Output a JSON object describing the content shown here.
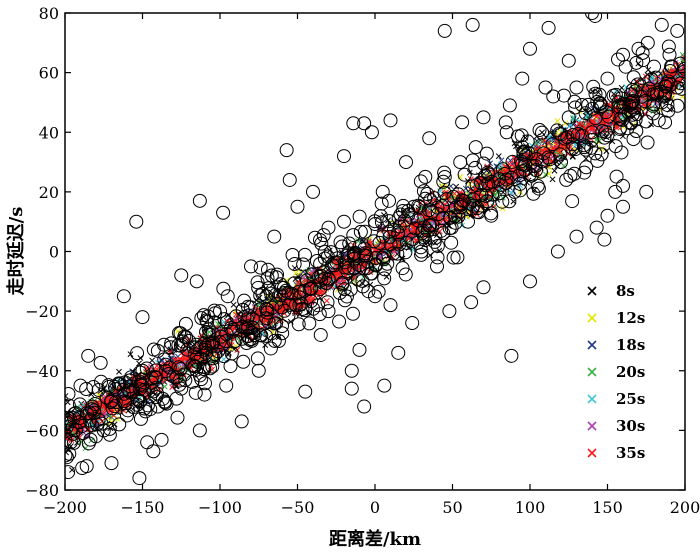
{
  "chart_data": {
    "type": "scatter",
    "xlabel": "距离差/km",
    "ylabel": "走时延迟/s",
    "xlim": [
      -200,
      200
    ],
    "ylim": [
      -80,
      80
    ],
    "xticks": [
      -200,
      -150,
      -100,
      -50,
      0,
      50,
      100,
      150,
      200
    ],
    "yticks": [
      -80,
      -60,
      -40,
      -20,
      0,
      20,
      40,
      60,
      80
    ],
    "xtick_labels": [
      "−200",
      "−150",
      "−100",
      "−50",
      "0",
      "50",
      "100",
      "150",
      "200"
    ],
    "ytick_labels": [
      "−80",
      "−60",
      "−40",
      "−20",
      "0",
      "20",
      "40",
      "60",
      "80"
    ],
    "grid": false,
    "legend_position": "lower-right",
    "colors": {
      "8s": "#000000",
      "12s": "#e6e600",
      "18s": "#1f3a8a",
      "20s": "#3cb043",
      "25s": "#3ec5d9",
      "30s": "#b03fb0",
      "35s": "#ff1a1a",
      "outlier_circles": "#000000"
    },
    "series": [
      {
        "name": "8s",
        "marker": "x",
        "trend": {
          "slope": 0.3,
          "intercept": 0.0
        }
      },
      {
        "name": "12s",
        "marker": "x",
        "trend": {
          "slope": 0.3,
          "intercept": 0.0
        }
      },
      {
        "name": "18s",
        "marker": "x",
        "trend": {
          "slope": 0.3,
          "intercept": 0.0
        }
      },
      {
        "name": "20s",
        "marker": "x",
        "trend": {
          "slope": 0.3,
          "intercept": 0.0
        }
      },
      {
        "name": "25s",
        "marker": "x",
        "trend": {
          "slope": 0.3,
          "intercept": 0.0
        }
      },
      {
        "name": "30s",
        "marker": "x",
        "trend": {
          "slope": 0.3,
          "intercept": 0.0
        }
      },
      {
        "name": "35s",
        "marker": "x",
        "trend": {
          "slope": 0.3,
          "intercept": 0.0
        }
      }
    ],
    "outliers": {
      "marker": "open-circle",
      "points": [
        [
          140,
          80
        ],
        [
          142,
          79
        ],
        [
          63,
          76
        ],
        [
          112,
          75
        ],
        [
          45,
          74
        ],
        [
          185,
          76
        ],
        [
          160,
          66
        ],
        [
          125,
          64
        ],
        [
          195,
          74
        ],
        [
          176,
          70
        ],
        [
          100,
          68
        ],
        [
          170,
          68
        ],
        [
          95,
          58
        ],
        [
          110,
          55
        ],
        [
          87,
          49
        ],
        [
          115,
          52
        ],
        [
          -7,
          43
        ],
        [
          -14,
          43
        ],
        [
          -2,
          40
        ],
        [
          10,
          44
        ],
        [
          -20,
          32
        ],
        [
          -57,
          34
        ],
        [
          -55,
          24
        ],
        [
          -113,
          17
        ],
        [
          -98,
          13
        ],
        [
          -154,
          10
        ],
        [
          -125,
          -8
        ],
        [
          -162,
          -15
        ],
        [
          -150,
          -22
        ],
        [
          -109,
          -27
        ],
        [
          -74,
          -28
        ],
        [
          -62,
          -30
        ],
        [
          -10,
          -33
        ],
        [
          15,
          -34
        ],
        [
          24,
          -24
        ],
        [
          70,
          -12
        ],
        [
          130,
          5
        ],
        [
          143,
          8
        ],
        [
          150,
          12
        ],
        [
          155,
          20
        ],
        [
          160,
          22
        ],
        [
          148,
          4
        ],
        [
          -185,
          -35
        ],
        [
          -190,
          -45
        ],
        [
          -186,
          -72
        ],
        [
          -198,
          -74
        ],
        [
          -170,
          -71
        ],
        [
          -152,
          -76
        ],
        [
          -143,
          -67
        ],
        [
          -147,
          -64
        ],
        [
          -113,
          -60
        ],
        [
          -86,
          -57
        ],
        [
          -96,
          -45
        ],
        [
          -75,
          -40
        ],
        [
          -45,
          -47
        ],
        [
          -15,
          -46
        ],
        [
          -15,
          -40
        ],
        [
          6,
          -45
        ],
        [
          -7,
          -52
        ],
        [
          48,
          -20
        ],
        [
          62,
          -17
        ],
        [
          88,
          -35
        ],
        [
          100,
          -10
        ],
        [
          118,
          0
        ],
        [
          175,
          20
        ],
        [
          160,
          15
        ],
        [
          -30,
          8
        ],
        [
          -50,
          15
        ],
        [
          -65,
          5
        ],
        [
          -80,
          -5
        ],
        [
          -95,
          -15
        ],
        [
          -120,
          -30
        ],
        [
          -135,
          -38
        ],
        [
          -40,
          20
        ],
        [
          20,
          30
        ],
        [
          35,
          38
        ],
        [
          55,
          30
        ],
        [
          70,
          45
        ],
        [
          85,
          40
        ],
        [
          130,
          55
        ],
        [
          150,
          58
        ],
        [
          180,
          62
        ],
        [
          190,
          66
        ],
        [
          165,
          50
        ],
        [
          -170,
          -50
        ],
        [
          -160,
          -55
        ],
        [
          -140,
          -52
        ],
        [
          -130,
          -42
        ],
        [
          -110,
          -48
        ],
        [
          -60,
          -25
        ],
        [
          -30,
          -20
        ],
        [
          0,
          -15
        ],
        [
          30,
          0
        ],
        [
          60,
          10
        ],
        [
          90,
          20
        ],
        [
          120,
          30
        ],
        [
          140,
          40
        ],
        [
          -100,
          -20
        ],
        [
          -115,
          -10
        ],
        [
          -150,
          -40
        ],
        [
          -175,
          -60
        ],
        [
          -180,
          -62
        ],
        [
          -165,
          -58
        ],
        [
          -125,
          -46
        ],
        [
          -85,
          -37
        ],
        [
          -35,
          -28
        ],
        [
          10,
          -18
        ],
        [
          40,
          -5
        ],
        [
          75,
          12
        ],
        [
          105,
          22
        ],
        [
          135,
          35
        ],
        [
          185,
          50
        ],
        [
          195,
          55
        ],
        [
          -105,
          -35
        ],
        [
          -90,
          -30
        ],
        [
          -70,
          -15
        ],
        [
          -20,
          10
        ],
        [
          5,
          20
        ],
        [
          25,
          15
        ],
        [
          45,
          25
        ],
        [
          65,
          35
        ],
        [
          95,
          35
        ],
        [
          125,
          45
        ]
      ]
    }
  }
}
